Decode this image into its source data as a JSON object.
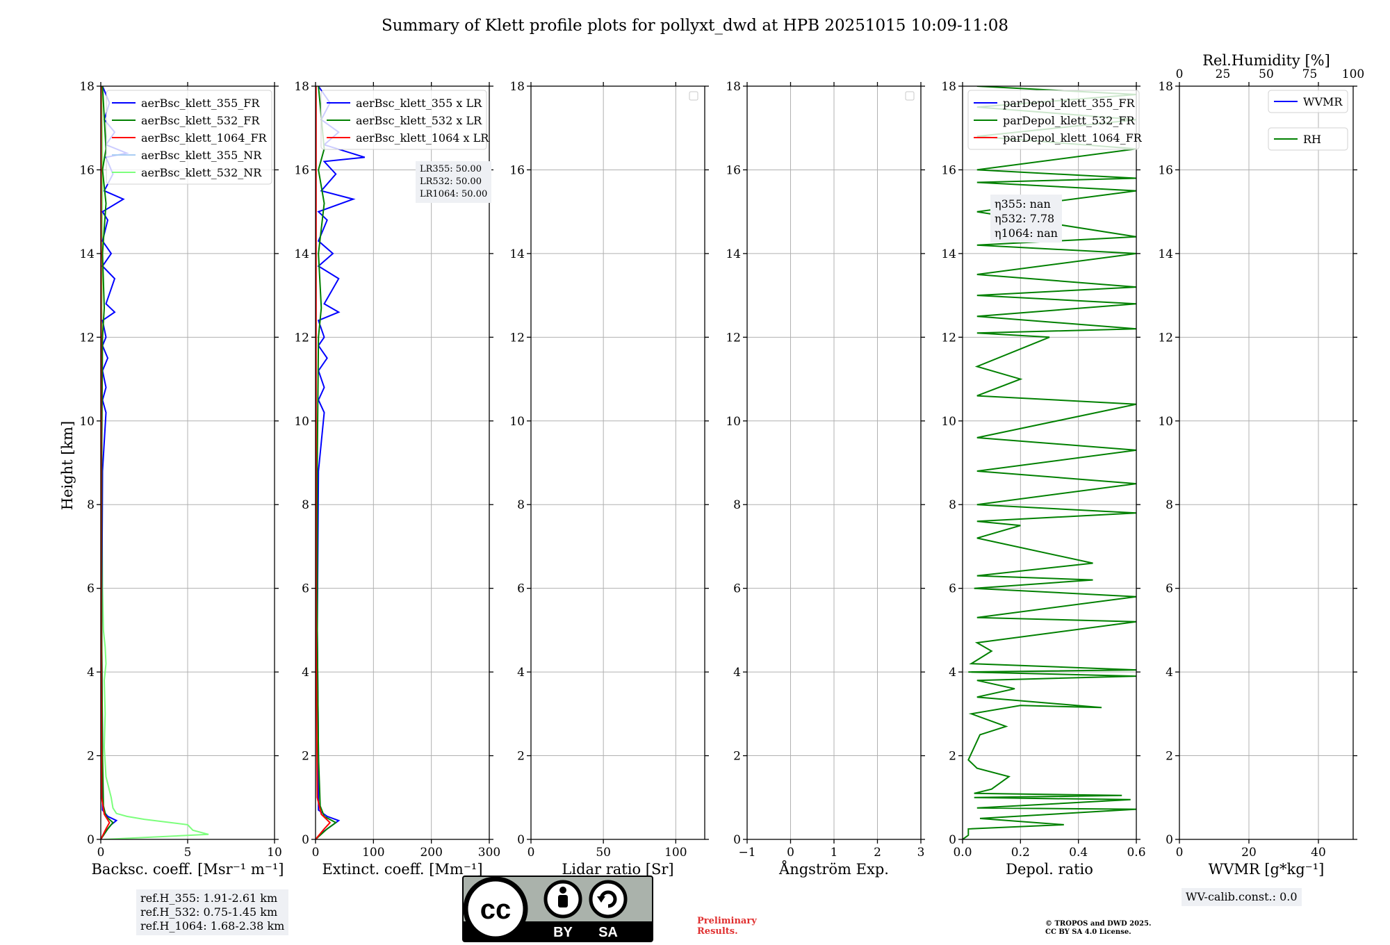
{
  "title": "Summary of Klett profile plots for pollyxt_dwd at HPB 20251015 10:09-11:08",
  "ylabel": "Height [km]",
  "colors": {
    "blue": "#0000ff",
    "green": "#008000",
    "red": "#ff0000",
    "lightblue": "#a9cdf4",
    "lightgreen": "#7cff7c",
    "grid": "#b0b0b0"
  },
  "chart_data": [
    {
      "type": "line",
      "panel": "backscatter",
      "xlabel": "Backsc. coeff. [Msr⁻¹ m⁻¹]",
      "ylabel": "Height [km]",
      "xlim": [
        0,
        10
      ],
      "ylim": [
        0,
        18
      ],
      "xticks": [
        "0",
        "5",
        "10"
      ],
      "yticks": [
        "0",
        "2",
        "4",
        "6",
        "8",
        "10",
        "12",
        "14",
        "16",
        "18"
      ],
      "legend": [
        "aerBsc_klett_355_FR",
        "aerBsc_klett_532_FR",
        "aerBsc_klett_1064_FR",
        "aerBsc_klett_355_NR",
        "aerBsc_klett_532_NR"
      ],
      "legend_colors": [
        "#0000ff",
        "#008000",
        "#ff0000",
        "#a9cdf4",
        "#7cff7c"
      ],
      "series": [
        {
          "name": "aerBsc_klett_532_NR",
          "color": "#7cff7c",
          "points": [
            [
              0.2,
              0.0
            ],
            [
              6.2,
              0.12
            ],
            [
              5.3,
              0.22
            ],
            [
              5.0,
              0.35
            ],
            [
              2.5,
              0.48
            ],
            [
              1.5,
              0.55
            ],
            [
              0.9,
              0.62
            ],
            [
              0.7,
              0.75
            ],
            [
              0.6,
              1.0
            ],
            [
              0.3,
              1.5
            ],
            [
              0.2,
              2.2
            ],
            [
              0.25,
              3.0
            ],
            [
              0.2,
              3.8
            ],
            [
              0.3,
              4.2
            ],
            [
              0.25,
              4.6
            ],
            [
              0.15,
              5.0
            ],
            [
              0.1,
              6.0
            ],
            [
              0.05,
              9.0
            ],
            [
              0.05,
              12.0
            ],
            [
              0.1,
              16.0
            ],
            [
              0.05,
              18.0
            ]
          ]
        },
        {
          "name": "aerBsc_klett_355_FR",
          "color": "#0000ff",
          "points": [
            [
              0.0,
              0.0
            ],
            [
              0.3,
              0.2
            ],
            [
              0.6,
              0.35
            ],
            [
              0.9,
              0.45
            ],
            [
              0.4,
              0.55
            ],
            [
              0.1,
              0.7
            ],
            [
              0.1,
              2.0
            ],
            [
              0.05,
              5.0
            ],
            [
              0.1,
              8.8
            ],
            [
              0.3,
              10.2
            ],
            [
              0.1,
              10.5
            ],
            [
              0.3,
              10.8
            ],
            [
              0.1,
              11.2
            ],
            [
              0.4,
              11.5
            ],
            [
              0.1,
              11.8
            ],
            [
              0.3,
              12.0
            ],
            [
              0.1,
              12.4
            ],
            [
              0.8,
              12.6
            ],
            [
              0.3,
              12.8
            ],
            [
              0.8,
              13.4
            ],
            [
              0.1,
              13.7
            ],
            [
              0.6,
              14.0
            ],
            [
              0.1,
              14.3
            ],
            [
              0.4,
              14.8
            ],
            [
              0.1,
              15.0
            ],
            [
              1.3,
              15.3
            ],
            [
              0.2,
              15.5
            ],
            [
              0.7,
              15.9
            ],
            [
              0.3,
              16.3
            ],
            [
              1.5,
              16.4
            ],
            [
              0.3,
              16.6
            ],
            [
              0.8,
              16.9
            ],
            [
              0.2,
              17.2
            ],
            [
              0.5,
              17.6
            ],
            [
              0.1,
              18.0
            ]
          ]
        },
        {
          "name": "aerBsc_klett_532_FR",
          "color": "#008000",
          "points": [
            [
              0.0,
              0.0
            ],
            [
              0.4,
              0.25
            ],
            [
              0.7,
              0.4
            ],
            [
              0.3,
              0.55
            ],
            [
              0.15,
              0.8
            ],
            [
              0.1,
              2.0
            ],
            [
              0.05,
              5.0
            ],
            [
              0.05,
              9.0
            ],
            [
              0.1,
              12.0
            ],
            [
              0.2,
              12.7
            ],
            [
              0.1,
              14.0
            ],
            [
              0.3,
              15.2
            ],
            [
              0.1,
              16.0
            ],
            [
              0.3,
              16.5
            ],
            [
              0.1,
              18.0
            ]
          ]
        },
        {
          "name": "aerBsc_klett_1064_FR",
          "color": "#ff0000",
          "points": [
            [
              0.0,
              0.0
            ],
            [
              0.3,
              0.25
            ],
            [
              0.5,
              0.4
            ],
            [
              0.2,
              0.6
            ],
            [
              0.05,
              1.0
            ],
            [
              0.02,
              5.0
            ],
            [
              0.02,
              18.0
            ]
          ]
        }
      ]
    },
    {
      "type": "line",
      "panel": "extinction",
      "xlabel": "Extinct. coeff. [Mm⁻¹]",
      "xlim": [
        0,
        300
      ],
      "ylim": [
        0,
        18
      ],
      "xticks": [
        "0",
        "100",
        "200",
        "300"
      ],
      "yticks": [
        "0",
        "2",
        "4",
        "6",
        "8",
        "10",
        "12",
        "14",
        "16",
        "18"
      ],
      "legend": [
        "aerBsc_klett_355 x LR",
        "aerBsc_klett_532 x LR",
        "aerBsc_klett_1064 x LR"
      ],
      "legend_colors": [
        "#0000ff",
        "#008000",
        "#ff0000"
      ],
      "annotation": [
        "LR355: 50.00",
        "LR532: 50.00",
        "LR1064: 50.00"
      ],
      "series": [
        {
          "name": "aerBsc_klett_355 x LR",
          "color": "#0000ff",
          "points": [
            [
              0,
              0.0
            ],
            [
              15,
              0.2
            ],
            [
              30,
              0.35
            ],
            [
              40,
              0.45
            ],
            [
              20,
              0.55
            ],
            [
              5,
              0.7
            ],
            [
              5,
              2.0
            ],
            [
              3,
              5.0
            ],
            [
              5,
              8.8
            ],
            [
              15,
              10.2
            ],
            [
              5,
              10.5
            ],
            [
              15,
              10.8
            ],
            [
              5,
              11.2
            ],
            [
              20,
              11.5
            ],
            [
              5,
              11.8
            ],
            [
              15,
              12.0
            ],
            [
              5,
              12.4
            ],
            [
              40,
              12.6
            ],
            [
              15,
              12.8
            ],
            [
              40,
              13.4
            ],
            [
              5,
              13.7
            ],
            [
              30,
              14.0
            ],
            [
              5,
              14.3
            ],
            [
              20,
              14.8
            ],
            [
              5,
              15.0
            ],
            [
              65,
              15.3
            ],
            [
              10,
              15.5
            ],
            [
              35,
              15.9
            ],
            [
              15,
              16.2
            ],
            [
              85,
              16.3
            ],
            [
              15,
              16.6
            ],
            [
              40,
              16.9
            ],
            [
              10,
              17.2
            ],
            [
              25,
              17.6
            ],
            [
              5,
              18.0
            ]
          ]
        },
        {
          "name": "aerBsc_klett_532 x LR",
          "color": "#008000",
          "points": [
            [
              0,
              0.0
            ],
            [
              20,
              0.25
            ],
            [
              35,
              0.4
            ],
            [
              15,
              0.55
            ],
            [
              8,
              0.8
            ],
            [
              5,
              2.0
            ],
            [
              3,
              5.0
            ],
            [
              3,
              9.0
            ],
            [
              5,
              12.0
            ],
            [
              10,
              12.7
            ],
            [
              5,
              14.0
            ],
            [
              15,
              15.2
            ],
            [
              5,
              16.0
            ],
            [
              15,
              16.5
            ],
            [
              5,
              18.0
            ]
          ]
        },
        {
          "name": "aerBsc_klett_1064 x LR",
          "color": "#ff0000",
          "points": [
            [
              0,
              0.0
            ],
            [
              15,
              0.25
            ],
            [
              25,
              0.4
            ],
            [
              10,
              0.6
            ],
            [
              3,
              1.0
            ],
            [
              1,
              5.0
            ],
            [
              1,
              18.0
            ]
          ]
        }
      ]
    },
    {
      "type": "line",
      "panel": "lidar_ratio",
      "xlabel": "Lidar ratio [Sr]",
      "xlim": [
        0,
        120
      ],
      "ylim": [
        0,
        18
      ],
      "xticks": [
        "0",
        "50",
        "100"
      ],
      "yticks": [
        "0",
        "2",
        "4",
        "6",
        "8",
        "10",
        "12",
        "14",
        "16",
        "18"
      ],
      "series": []
    },
    {
      "type": "line",
      "panel": "angstroem",
      "xlabel": "Ångström Exp.",
      "xlim": [
        -1,
        3
      ],
      "ylim": [
        0,
        18
      ],
      "xticks": [
        "−1",
        "0",
        "1",
        "2",
        "3"
      ],
      "yticks": [
        "0",
        "2",
        "4",
        "6",
        "8",
        "10",
        "12",
        "14",
        "16",
        "18"
      ],
      "series": []
    },
    {
      "type": "line",
      "panel": "depolarization",
      "xlabel": "Depol. ratio",
      "xlim": [
        0,
        0.6
      ],
      "ylim": [
        0,
        18
      ],
      "xticks": [
        "0.0",
        "0.2",
        "0.4",
        "0.6"
      ],
      "yticks": [
        "0",
        "2",
        "4",
        "6",
        "8",
        "10",
        "12",
        "14",
        "16",
        "18"
      ],
      "legend": [
        "parDepol_klett_355_FR",
        "parDepol_klett_532_FR",
        "parDepol_klett_1064_FR"
      ],
      "legend_colors": [
        "#0000ff",
        "#008000",
        "#ff0000"
      ],
      "annotation": [
        "η355: nan",
        "η532: 7.78",
        "η1064: nan"
      ],
      "series": [
        {
          "name": "parDepol_klett_532_FR",
          "color": "#008000",
          "points": [
            [
              0.0,
              0.0
            ],
            [
              0.02,
              0.1
            ],
            [
              0.02,
              0.25
            ],
            [
              0.35,
              0.35
            ],
            [
              0.06,
              0.5
            ],
            [
              0.6,
              0.72
            ],
            [
              0.05,
              0.75
            ],
            [
              0.58,
              0.95
            ],
            [
              0.04,
              1.0
            ],
            [
              0.55,
              1.05
            ],
            [
              0.04,
              1.1
            ],
            [
              0.1,
              1.2
            ],
            [
              0.16,
              1.5
            ],
            [
              0.05,
              1.7
            ],
            [
              0.02,
              1.9
            ],
            [
              0.06,
              2.5
            ],
            [
              0.15,
              2.7
            ],
            [
              0.03,
              3.0
            ],
            [
              0.2,
              3.2
            ],
            [
              0.48,
              3.15
            ],
            [
              0.05,
              3.4
            ],
            [
              0.18,
              3.6
            ],
            [
              0.05,
              3.8
            ],
            [
              0.6,
              3.9
            ],
            [
              0.02,
              4.0
            ],
            [
              0.6,
              4.05
            ],
            [
              0.03,
              4.2
            ],
            [
              0.1,
              4.5
            ],
            [
              0.05,
              4.7
            ],
            [
              0.6,
              5.2
            ],
            [
              0.05,
              5.3
            ],
            [
              0.6,
              5.8
            ],
            [
              0.04,
              6.0
            ],
            [
              0.45,
              6.2
            ],
            [
              0.05,
              6.3
            ],
            [
              0.45,
              6.6
            ],
            [
              0.05,
              7.2
            ],
            [
              0.2,
              7.5
            ],
            [
              0.05,
              7.6
            ],
            [
              0.6,
              7.8
            ],
            [
              0.05,
              8.0
            ],
            [
              0.6,
              8.5
            ],
            [
              0.05,
              8.8
            ],
            [
              0.6,
              9.3
            ],
            [
              0.05,
              9.6
            ],
            [
              0.6,
              10.4
            ],
            [
              0.05,
              10.6
            ],
            [
              0.2,
              11.0
            ],
            [
              0.05,
              11.3
            ],
            [
              0.3,
              12.0
            ],
            [
              0.05,
              12.1
            ],
            [
              0.6,
              12.2
            ],
            [
              0.05,
              12.5
            ],
            [
              0.6,
              12.8
            ],
            [
              0.05,
              13.0
            ],
            [
              0.6,
              13.2
            ],
            [
              0.05,
              13.5
            ],
            [
              0.6,
              14.0
            ],
            [
              0.05,
              14.2
            ],
            [
              0.6,
              14.4
            ],
            [
              0.05,
              15.0
            ],
            [
              0.6,
              15.5
            ],
            [
              0.05,
              15.7
            ],
            [
              0.6,
              15.8
            ],
            [
              0.05,
              16.0
            ],
            [
              0.6,
              16.5
            ],
            [
              0.05,
              16.8
            ],
            [
              0.6,
              17.2
            ],
            [
              0.05,
              17.5
            ],
            [
              0.6,
              17.8
            ],
            [
              0.05,
              18.0
            ]
          ]
        }
      ]
    },
    {
      "type": "line",
      "panel": "water_vapor",
      "xlabel": "WVMR [g*kg⁻¹]",
      "xlim": [
        0,
        50
      ],
      "ylim": [
        0,
        18
      ],
      "xticks": [
        "0",
        "20",
        "40"
      ],
      "yticks": [
        "0",
        "2",
        "4",
        "6",
        "8",
        "10",
        "12",
        "14",
        "16",
        "18"
      ],
      "secondary_xlabel": "Rel.Humidity [%]",
      "secondary_xlim": [
        0,
        100
      ],
      "secondary_xticks": [
        "0",
        "25",
        "50",
        "75",
        "100"
      ],
      "legend": [
        "WVMR",
        "RH"
      ],
      "legend_colors": [
        "#0000ff",
        "#008000"
      ],
      "series": []
    }
  ],
  "ref_heights": [
    "ref.H_355: 1.91-2.61 km",
    "ref.H_532: 0.75-1.45 km",
    "ref.H_1064: 1.68-2.38 km"
  ],
  "wv_calib": "WV-calib.const.: 0.0",
  "preliminary": [
    "Preliminary",
    "Results."
  ],
  "copyright": [
    "© TROPOS and DWD 2025.",
    "CC BY SA 4.0 License."
  ],
  "license_logo": {
    "cc": "cc",
    "by": "BY",
    "sa": "SA"
  }
}
